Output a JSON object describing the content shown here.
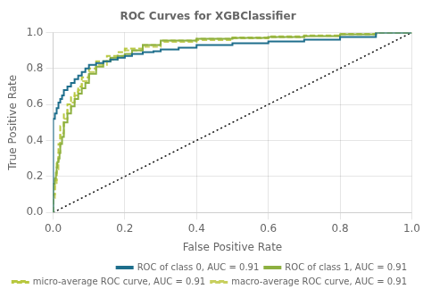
{
  "chart_data": {
    "type": "step",
    "title": "ROC Curves for XGBClassifier",
    "xlabel": "False Positive Rate",
    "ylabel": "True Positive Rate",
    "xlim": [
      0.0,
      1.0
    ],
    "ylim": [
      0.0,
      1.0
    ],
    "xticks": [
      {
        "value": 0.0,
        "label": "0.0"
      },
      0.2,
      0.4,
      0.6,
      0.8,
      {
        "value": 1.0,
        "label": "1.0"
      }
    ],
    "yticks": [
      {
        "value": 0.0,
        "label": "0.0"
      },
      0.2,
      0.4,
      0.6,
      0.8,
      {
        "value": 1.0,
        "label": "1.0"
      }
    ],
    "grid": true,
    "legend": "lower right",
    "series": [
      {
        "name": "ROC of class 0, AUC = 0.91",
        "color": "#1e6e8c",
        "line_style": "solid",
        "x": [
          0.0,
          0.0,
          0.005,
          0.01,
          0.015,
          0.02,
          0.025,
          0.03,
          0.04,
          0.05,
          0.06,
          0.07,
          0.08,
          0.09,
          0.1,
          0.12,
          0.14,
          0.16,
          0.18,
          0.2,
          0.22,
          0.25,
          0.28,
          0.3,
          0.35,
          0.4,
          0.5,
          0.6,
          0.7,
          0.8,
          0.9,
          1.0
        ],
        "values": [
          0.0,
          0.5,
          0.52,
          0.55,
          0.58,
          0.61,
          0.63,
          0.65,
          0.68,
          0.7,
          0.72,
          0.74,
          0.76,
          0.78,
          0.8,
          0.82,
          0.83,
          0.84,
          0.85,
          0.86,
          0.87,
          0.88,
          0.89,
          0.895,
          0.905,
          0.915,
          0.93,
          0.94,
          0.95,
          0.96,
          0.975,
          1.0
        ]
      },
      {
        "name": "ROC of class 1, AUC = 0.91",
        "color": "#8db040",
        "line_style": "solid",
        "x": [
          0.0,
          0.0,
          0.005,
          0.008,
          0.01,
          0.012,
          0.015,
          0.018,
          0.02,
          0.025,
          0.03,
          0.04,
          0.05,
          0.06,
          0.07,
          0.08,
          0.09,
          0.1,
          0.12,
          0.14,
          0.16,
          0.18,
          0.2,
          0.22,
          0.25,
          0.3,
          0.4,
          0.5,
          0.6,
          0.7,
          0.8,
          0.9,
          1.0
        ],
        "values": [
          0.0,
          0.13,
          0.16,
          0.19,
          0.22,
          0.25,
          0.28,
          0.3,
          0.33,
          0.38,
          0.42,
          0.5,
          0.55,
          0.59,
          0.63,
          0.66,
          0.69,
          0.72,
          0.77,
          0.81,
          0.84,
          0.86,
          0.87,
          0.88,
          0.9,
          0.93,
          0.955,
          0.965,
          0.97,
          0.975,
          0.98,
          0.99,
          1.0
        ]
      },
      {
        "name": "micro-average ROC curve, AUC = 0.91",
        "color": "#b8c840",
        "line_style": "dashed",
        "x": [
          0.0,
          0.005,
          0.01,
          0.015,
          0.02,
          0.03,
          0.04,
          0.05,
          0.06,
          0.07,
          0.08,
          0.1,
          0.12,
          0.15,
          0.18,
          0.2,
          0.25,
          0.3,
          0.4,
          0.5,
          0.6,
          0.7,
          0.8,
          0.9,
          1.0
        ],
        "values": [
          0.0,
          0.1,
          0.18,
          0.28,
          0.38,
          0.48,
          0.55,
          0.6,
          0.64,
          0.67,
          0.7,
          0.75,
          0.8,
          0.84,
          0.87,
          0.89,
          0.91,
          0.93,
          0.955,
          0.965,
          0.972,
          0.978,
          0.984,
          0.992,
          1.0
        ]
      },
      {
        "name": "macro-average ROC curve, AUC = 0.91",
        "color": "#c8d060",
        "line_style": "dashed",
        "x": [
          0.0,
          0.005,
          0.01,
          0.015,
          0.02,
          0.03,
          0.04,
          0.05,
          0.06,
          0.07,
          0.08,
          0.1,
          0.12,
          0.15,
          0.18,
          0.2,
          0.25,
          0.3,
          0.4,
          0.5,
          0.6,
          0.7,
          0.8,
          0.9,
          1.0
        ],
        "values": [
          0.0,
          0.08,
          0.15,
          0.24,
          0.33,
          0.44,
          0.52,
          0.57,
          0.61,
          0.65,
          0.68,
          0.73,
          0.78,
          0.82,
          0.85,
          0.87,
          0.9,
          0.92,
          0.947,
          0.958,
          0.967,
          0.974,
          0.981,
          0.99,
          1.0
        ]
      },
      {
        "type": "line",
        "color": "#111111",
        "line_style": "dotted",
        "x": [
          0,
          1
        ],
        "values": [
          0,
          1
        ]
      }
    ]
  }
}
